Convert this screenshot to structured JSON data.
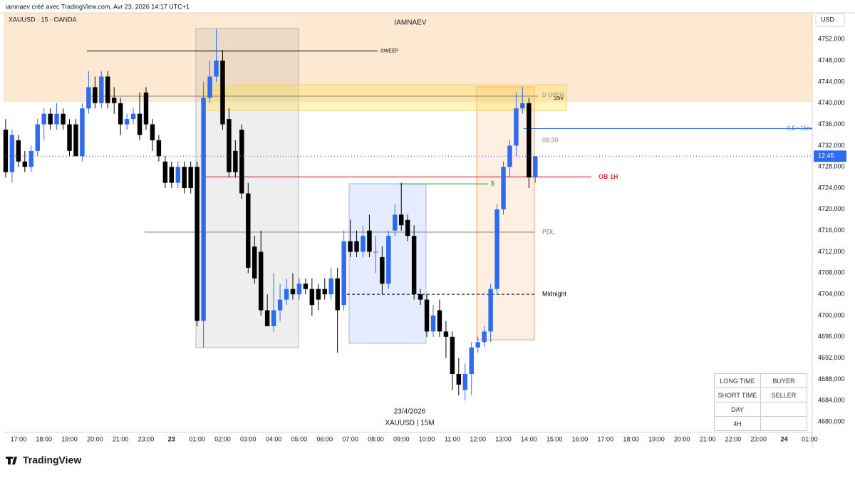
{
  "header": {
    "title": "iamnaev créé avec TradingView.com, Avr 23, 2026 14:17 UTC+1"
  },
  "symbol": "XAUUSD · 15 · OANDA",
  "watermark": "IAMNAEV",
  "date_caption": "23/4/2026",
  "symbol_caption": "XAUUSD | 15M",
  "currency": "USD",
  "countdown": "12:45",
  "brand": "TradingView",
  "table": {
    "rows": [
      [
        "LONG TIME",
        "BUYER"
      ],
      [
        "SHORT TIME",
        "SELLER"
      ],
      [
        "DAY",
        null
      ],
      [
        "4H",
        null
      ]
    ]
  },
  "chart_data": {
    "type": "candlestick",
    "up_color": "#2f6bf0",
    "down_color": "#000000",
    "open": [
      4735,
      4727,
      4733,
      4729,
      4728,
      4731,
      4736,
      4738,
      4736,
      4738,
      4736,
      4736,
      4730,
      4739,
      4743,
      4740,
      4745,
      4741,
      4740,
      4736,
      4737,
      4738,
      4742,
      4736,
      4733,
      4729,
      4728,
      4725,
      4728,
      4728,
      4728,
      4699,
      4741,
      4745,
      4748,
      4737,
      4731,
      4735,
      4723,
      4713,
      4712,
      4701,
      4698,
      4701,
      4703,
      4705,
      4704,
      4706,
      4705,
      4705,
      4705,
      4704,
      4707,
      4702,
      4714,
      4714,
      4712,
      4716,
      4712,
      4711,
      4706,
      4716,
      4719,
      4718,
      4715,
      4704,
      4703,
      4697,
      4701,
      4697,
      4696,
      4689,
      4686,
      4689,
      4694,
      4695,
      4697,
      4705,
      4720,
      4728,
      4732,
      4739,
      4740,
      4726
    ],
    "high": [
      4737,
      4735,
      4734,
      4731,
      4732,
      4737,
      4739,
      4739,
      4740,
      4739,
      4737,
      4737,
      4740,
      4746,
      4745,
      4746,
      4746,
      4743,
      4741,
      4738,
      4739,
      4742,
      4743,
      4737,
      4734,
      4730,
      4729,
      4729,
      4729,
      4729,
      4729,
      4744,
      4748,
      4754,
      4750,
      4739,
      4733,
      4736,
      4725,
      4715,
      4716,
      4704,
      4708,
      4706,
      4707,
      4708,
      4707,
      4707,
      4707,
      4706,
      4707,
      4709,
      4709,
      4716,
      4718,
      4716,
      4717,
      4719,
      4715,
      4713,
      4716,
      4721,
      4725,
      4719,
      4717,
      4705,
      4704,
      4702,
      4703,
      4699,
      4697,
      4692,
      4691,
      4695,
      4696,
      4698,
      4706,
      4721,
      4729,
      4733,
      4742,
      4743,
      4741,
      4730
    ],
    "low": [
      4726,
      4725,
      4728,
      4727,
      4727,
      4730,
      4733,
      4735,
      4735,
      4735,
      4730,
      4730,
      4729,
      4738,
      4739,
      4739,
      4739,
      4738,
      4734,
      4735,
      4736,
      4733,
      4735,
      4731,
      4729,
      4724,
      4724,
      4724,
      4723,
      4723,
      4698,
      4694,
      4740,
      4744,
      4735,
      4726,
      4726,
      4722,
      4708,
      4706,
      4700,
      4698,
      4697,
      4699,
      4702,
      4703,
      4703,
      4704,
      4700,
      4701,
      4703,
      4703,
      4693,
      4701,
      4711,
      4711,
      4711,
      4711,
      4708,
      4704,
      4705,
      4715,
      4716,
      4714,
      4703,
      4702,
      4696,
      4696,
      4696,
      4692,
      4686,
      4685,
      4684,
      4685,
      4693,
      4694,
      4695,
      4704,
      4719,
      4726,
      4730,
      4738,
      4724,
      4725
    ],
    "close": [
      4727,
      4734,
      4729,
      4728,
      4731,
      4736,
      4738,
      4736,
      4738,
      4736,
      4731,
      4730,
      4739,
      4743,
      4740,
      4745,
      4740,
      4740,
      4736,
      4737,
      4738,
      4734,
      4736,
      4733,
      4730,
      4725,
      4725,
      4728,
      4724,
      4724,
      4699,
      4741,
      4745,
      4748,
      4736,
      4727,
      4727,
      4723,
      4709,
      4707,
      4701,
      4698,
      4701,
      4703,
      4705,
      4704,
      4706,
      4705,
      4702,
      4703,
      4704,
      4707,
      4701,
      4714,
      4712,
      4712,
      4715,
      4712,
      4712,
      4706,
      4715,
      4719,
      4717,
      4715,
      4704,
      4703,
      4697,
      4700,
      4697,
      4696,
      4689,
      4687,
      4689,
      4694,
      4695,
      4697,
      4705,
      4720,
      4728,
      4732,
      4739,
      4740,
      4726,
      4730
    ],
    "xlim": [
      -0.33,
      126.4
    ],
    "xticks": [
      {
        "value": 2,
        "label": "17:00"
      },
      {
        "value": 6,
        "label": "18:00"
      },
      {
        "value": 10,
        "label": "19:00"
      },
      {
        "value": 14,
        "label": "20:00"
      },
      {
        "value": 18,
        "label": "21:00"
      },
      {
        "value": 22,
        "label": "23:00"
      },
      {
        "value": 26,
        "label": "23"
      },
      {
        "value": 30,
        "label": "01:00"
      },
      {
        "value": 34,
        "label": "02:00"
      },
      {
        "value": 38,
        "label": "03:00"
      },
      {
        "value": 42,
        "label": "04:00"
      },
      {
        "value": 46,
        "label": "05:00"
      },
      {
        "value": 50,
        "label": "06:00"
      },
      {
        "value": 54,
        "label": "07:00"
      },
      {
        "value": 58,
        "label": "08:00"
      },
      {
        "value": 62,
        "label": "09:00"
      },
      {
        "value": 66,
        "label": "10:00"
      },
      {
        "value": 70,
        "label": "11:00"
      },
      {
        "value": 74,
        "label": "12:00"
      },
      {
        "value": 78,
        "label": "13:00"
      },
      {
        "value": 82,
        "label": "14:00"
      },
      {
        "value": 86,
        "label": "15:00"
      },
      {
        "value": 90,
        "label": "16:00"
      },
      {
        "value": 94,
        "label": "17:00"
      },
      {
        "value": 98,
        "label": "18:00"
      },
      {
        "value": 102,
        "label": "19:00"
      },
      {
        "value": 106,
        "label": "20:00"
      },
      {
        "value": 110,
        "label": "21:00"
      },
      {
        "value": 114,
        "label": "22:00"
      },
      {
        "value": 118,
        "label": "23:00"
      },
      {
        "value": 122,
        "label": "24"
      },
      {
        "value": 126,
        "label": "01:00"
      }
    ],
    "ylim": [
      4678,
      4757
    ],
    "yticks": [
      {
        "value": 4680,
        "label": "4680,000"
      },
      {
        "value": 4684,
        "label": "4684,000"
      },
      {
        "value": 4688,
        "label": "4688,000"
      },
      {
        "value": 4692,
        "label": "4692,000"
      },
      {
        "value": 4696,
        "label": "4696,000"
      },
      {
        "value": 4700,
        "label": "4700,000"
      },
      {
        "value": 4704,
        "label": "4704,000"
      },
      {
        "value": 4708,
        "label": "4708,000"
      },
      {
        "value": 4712,
        "label": "4712,000"
      },
      {
        "value": 4716,
        "label": "4716,000"
      },
      {
        "value": 4720,
        "label": "4720,000"
      },
      {
        "value": 4724,
        "label": "4724,000"
      },
      {
        "value": 4728,
        "label": "4728,000"
      },
      {
        "value": 4732,
        "label": "4732,000"
      },
      {
        "value": 4736,
        "label": "4736,000"
      },
      {
        "value": 4740,
        "label": "4740,000"
      },
      {
        "value": 4744,
        "label": "4744,000"
      },
      {
        "value": 4748,
        "label": "4748,000"
      },
      {
        "value": 4752,
        "label": "4752,000"
      }
    ],
    "grid": false,
    "levels": [
      {
        "label": "SWEEP",
        "value": 4749.8,
        "color": "#000000"
      },
      {
        "label": "D OPEN",
        "value": 4741.3,
        "color": "#888888"
      },
      {
        "label": "OB 1H",
        "value": 4726.1,
        "color": "#e53935"
      },
      {
        "label": "PDL",
        "value": 4715.7,
        "color": "#777777"
      },
      {
        "label": "Midnight",
        "value": 4704,
        "color": "#000000"
      },
      {
        "label": "$",
        "value": 4724.8,
        "color": "#2e9e3e"
      },
      {
        "label": "0,5 • 15m",
        "value": 4735.2,
        "color": "#2f6bf0"
      }
    ],
    "annotations": [
      "15m",
      "08:30"
    ]
  }
}
